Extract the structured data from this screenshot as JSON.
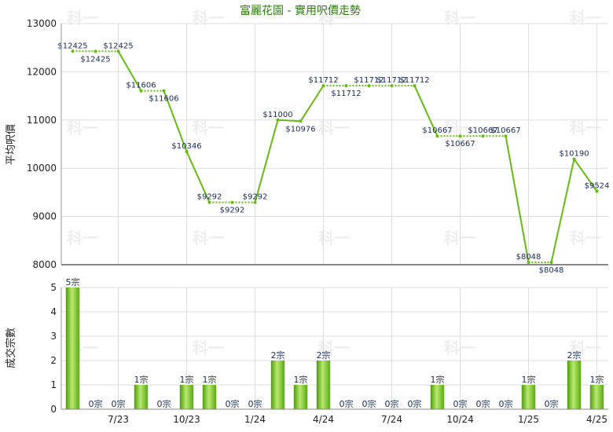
{
  "chart_data": [
    {
      "type": "line",
      "title": "富麗花園 - 實用呎價走勢",
      "ylabel": "平均呎價",
      "ylim": [
        8000,
        13000
      ],
      "yticks": [
        "8000",
        "9000",
        "10000",
        "11000",
        "12000",
        "13000"
      ],
      "x_ticks": [
        "7/23",
        "10/23",
        "1/24",
        "4/24",
        "7/24",
        "10/24",
        "1/25",
        "4/25"
      ],
      "grid": true,
      "line_color": "#66bb11",
      "values": [
        12425,
        12425,
        12425,
        11606,
        11606,
        10346,
        9292,
        9292,
        9292,
        11000,
        10976,
        11712,
        11712,
        11712,
        11712,
        11712,
        10667,
        10667,
        10667,
        10667,
        8048,
        8048,
        10190,
        9524
      ],
      "labels": [
        "$12425",
        "$12425",
        "$12425",
        "$11606",
        "$11606",
        "$10346",
        "$9292",
        "$9292",
        "$9292",
        "$11000",
        "$10976",
        "$11712",
        "$11712",
        "$11712",
        "$11712",
        "$11712",
        "$10667",
        "$10667",
        "$10667",
        "$10667",
        "$8048",
        "$8048",
        "$10190",
        "$9524"
      ]
    },
    {
      "type": "bar",
      "ylabel": "成交宗數",
      "ylim": [
        0,
        5
      ],
      "yticks": [
        "0",
        "1",
        "2",
        "3",
        "4",
        "5"
      ],
      "x_ticks": [
        "7/23",
        "10/23",
        "1/24",
        "4/24",
        "7/24",
        "10/24",
        "1/25",
        "4/25"
      ],
      "bar_color": "#66bb11",
      "values": [
        5,
        0,
        0,
        1,
        0,
        1,
        1,
        0,
        0,
        2,
        1,
        2,
        0,
        0,
        0,
        0,
        1,
        0,
        0,
        0,
        1,
        0,
        2,
        1
      ],
      "labels": [
        "5宗",
        "0宗",
        "0宗",
        "1宗",
        "0宗",
        "1宗",
        "1宗",
        "0宗",
        "0宗",
        "2宗",
        "1宗",
        "2宗",
        "0宗",
        "0宗",
        "0宗",
        "0宗",
        "1宗",
        "0宗",
        "0宗",
        "0宗",
        "1宗",
        "0宗",
        "2宗",
        "1宗"
      ]
    }
  ],
  "watermark": "科一"
}
